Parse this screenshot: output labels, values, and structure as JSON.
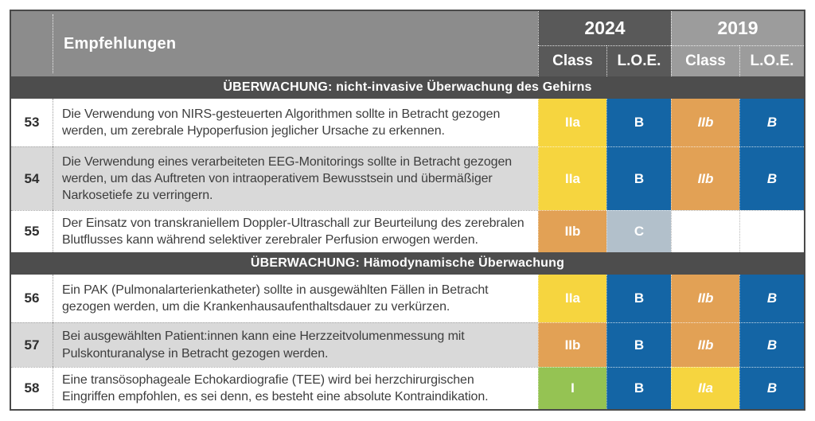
{
  "header": {
    "recommendations_label": "Empfehlungen",
    "groups": [
      {
        "year": "2024",
        "class_label": "Class",
        "loe_label": "L.O.E."
      },
      {
        "year": "2019",
        "class_label": "Class",
        "loe_label": "L.O.E."
      }
    ]
  },
  "sections": [
    {
      "title": "ÜBERWACHUNG: nicht-invasive Überwachung des Gehirns",
      "rows": [
        {
          "num": "53",
          "text": "Die Verwendung von NIRS-gesteuerten Algorithmen sollte in Betracht gezogen werden, um zerebrale Hypoperfusion jeglicher Ursache zu erkennen.",
          "y2024": {
            "class": "IIa",
            "class_color": "yellow",
            "loe": "B",
            "loe_color": "blue"
          },
          "y2019": {
            "class": "IIb",
            "class_color": "orange",
            "loe": "B",
            "loe_color": "blue"
          }
        },
        {
          "num": "54",
          "text": "Die Verwendung eines verarbeiteten EEG-Monitorings sollte in Betracht gezogen werden, um das Auftreten von intraoperativem Bewusstsein und übermäßiger Narkosetiefe zu verringern.",
          "y2024": {
            "class": "IIa",
            "class_color": "yellow",
            "loe": "B",
            "loe_color": "blue"
          },
          "y2019": {
            "class": "IIb",
            "class_color": "orange",
            "loe": "B",
            "loe_color": "blue"
          }
        },
        {
          "num": "55",
          "text": "Der Einsatz von transkraniellem Doppler-Ultraschall zur Beurteilung des zerebralen Blutflusses kann während selektiver zerebraler Perfusion erwogen werden.",
          "y2024": {
            "class": "IIb",
            "class_color": "orange",
            "loe": "C",
            "loe_color": "grayblue"
          },
          "y2019": {
            "class": "",
            "class_color": "none",
            "loe": "",
            "loe_color": "none"
          }
        }
      ]
    },
    {
      "title": "ÜBERWACHUNG: Hämodynamische Überwachung",
      "rows": [
        {
          "num": "56",
          "text": "Ein PAK (Pulmonalarterienkatheter) sollte in ausgewählten Fällen in Betracht gezogen werden, um die Krankenhausaufenthaltsdauer zu verkürzen.",
          "y2024": {
            "class": "IIa",
            "class_color": "yellow",
            "loe": "B",
            "loe_color": "blue"
          },
          "y2019": {
            "class": "IIb",
            "class_color": "orange",
            "loe": "B",
            "loe_color": "blue"
          }
        },
        {
          "num": "57",
          "text": "Bei ausgewählten Patient:innen kann eine Herzzeitvolumenmessung mit Pulskonturanalyse in Betracht gezogen werden.",
          "y2024": {
            "class": "IIb",
            "class_color": "orange",
            "loe": "B",
            "loe_color": "blue"
          },
          "y2019": {
            "class": "IIb",
            "class_color": "orange",
            "loe": "B",
            "loe_color": "blue"
          }
        },
        {
          "num": "58",
          "text": "Eine transösophageale Echokardiografie (TEE) wird bei herzchirurgischen Eingriffen empfohlen, es sei denn, es besteht eine absolute Kontraindikation.",
          "y2024": {
            "class": "I",
            "class_color": "green",
            "loe": "B",
            "loe_color": "blue"
          },
          "y2019": {
            "class": "IIa",
            "class_color": "yellow",
            "loe": "B",
            "loe_color": "blue"
          }
        }
      ]
    }
  ],
  "colors": {
    "class_I_green": "#95c353",
    "class_IIa_yellow": "#f6d53f",
    "class_IIb_orange": "#e2a155",
    "loe_B_blue": "#1465a5",
    "loe_C_grayblue": "#b2c0cb",
    "header_gray": "#8c8c8c",
    "group_2024_gray": "#595959",
    "group_2019_gray": "#9c9c9c",
    "section_bar_gray": "#4d4d4d",
    "row_alt_gray": "#d9d9d9"
  }
}
